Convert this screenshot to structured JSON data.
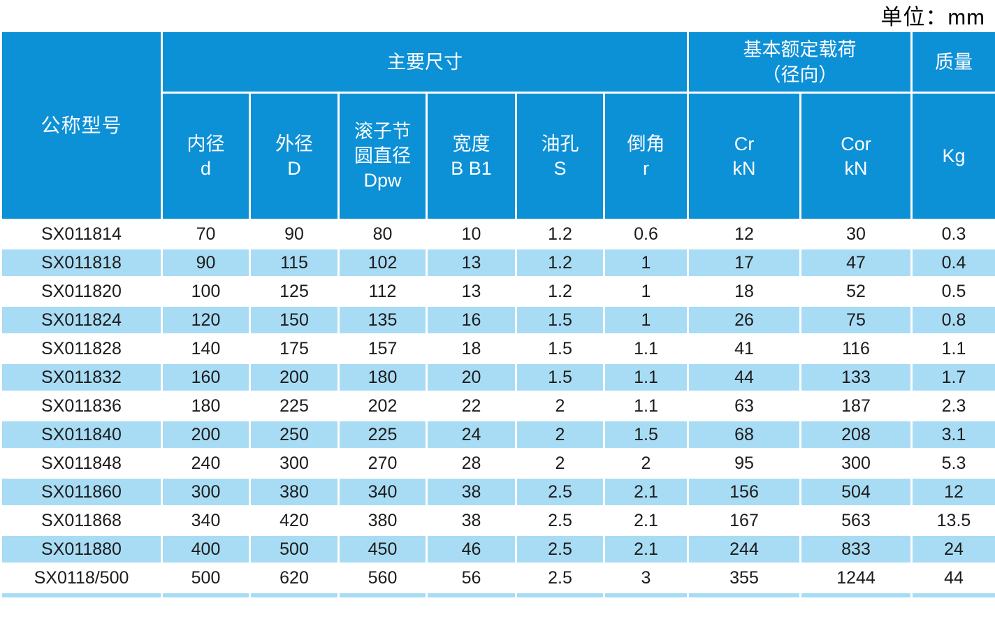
{
  "unit_label": "单位：mm",
  "colors": {
    "header_blue": "#0C90D6",
    "row_blue": "#A8DCF4",
    "text_dark": "#1C1C1C",
    "header_text": "#FFFFFF"
  },
  "table": {
    "header": {
      "model": "公称型号",
      "main_dimensions": "主要尺寸",
      "rated_load_line1": "基本额定载荷",
      "rated_load_line2": "（径向）",
      "mass": "质量",
      "sub_headers": {
        "bore": {
          "line1": "内径",
          "line2": "d"
        },
        "outer": {
          "line1": "外径",
          "line2": "D"
        },
        "pitch": {
          "line1": "滚子节",
          "line2": "圆直径",
          "line3": "Dpw"
        },
        "width": {
          "line1": "宽度",
          "line2": "B B1"
        },
        "oil_hole": {
          "line1": "油孔",
          "line2": "S"
        },
        "chamfer": {
          "line1": "倒角",
          "line2": "r"
        },
        "cr": {
          "line1": "Cr",
          "line2": "kN"
        },
        "cor": {
          "line1": "Cor",
          "line2": "kN"
        },
        "mass_unit": {
          "line1": "Kg"
        }
      }
    },
    "rows": [
      {
        "model": "SX011814",
        "values": [
          70,
          90,
          80,
          10,
          1.2,
          0.6,
          12,
          30,
          0.3
        ]
      },
      {
        "model": "SX011818",
        "values": [
          90,
          115,
          102,
          13,
          1.2,
          1,
          17,
          47,
          0.4
        ]
      },
      {
        "model": "SX011820",
        "values": [
          100,
          125,
          112,
          13,
          1.2,
          1,
          18,
          52,
          0.5
        ]
      },
      {
        "model": "SX011824",
        "values": [
          120,
          150,
          135,
          16,
          1.5,
          1,
          26,
          75,
          0.8
        ]
      },
      {
        "model": "SX011828",
        "values": [
          140,
          175,
          157,
          18,
          1.5,
          1.1,
          41,
          116,
          1.1
        ]
      },
      {
        "model": "SX011832",
        "values": [
          160,
          200,
          180,
          20,
          1.5,
          1.1,
          44,
          133,
          1.7
        ]
      },
      {
        "model": "SX011836",
        "values": [
          180,
          225,
          202,
          22,
          2,
          1.1,
          63,
          187,
          2.3
        ]
      },
      {
        "model": "SX011840",
        "values": [
          200,
          250,
          225,
          24,
          2,
          1.5,
          68,
          208,
          3.1
        ]
      },
      {
        "model": "SX011848",
        "values": [
          240,
          300,
          270,
          28,
          2,
          2,
          95,
          300,
          5.3
        ]
      },
      {
        "model": "SX011860",
        "values": [
          300,
          380,
          340,
          38,
          2.5,
          2.1,
          156,
          504,
          12
        ]
      },
      {
        "model": "SX011868",
        "values": [
          340,
          420,
          380,
          38,
          2.5,
          2.1,
          167,
          563,
          13.5
        ]
      },
      {
        "model": "SX011880",
        "values": [
          400,
          500,
          450,
          46,
          2.5,
          2.1,
          244,
          833,
          24
        ]
      },
      {
        "model": "SX0118/500",
        "values": [
          500,
          620,
          560,
          56,
          2.5,
          3,
          355,
          1244,
          44
        ]
      }
    ],
    "partial_next_row": true
  }
}
